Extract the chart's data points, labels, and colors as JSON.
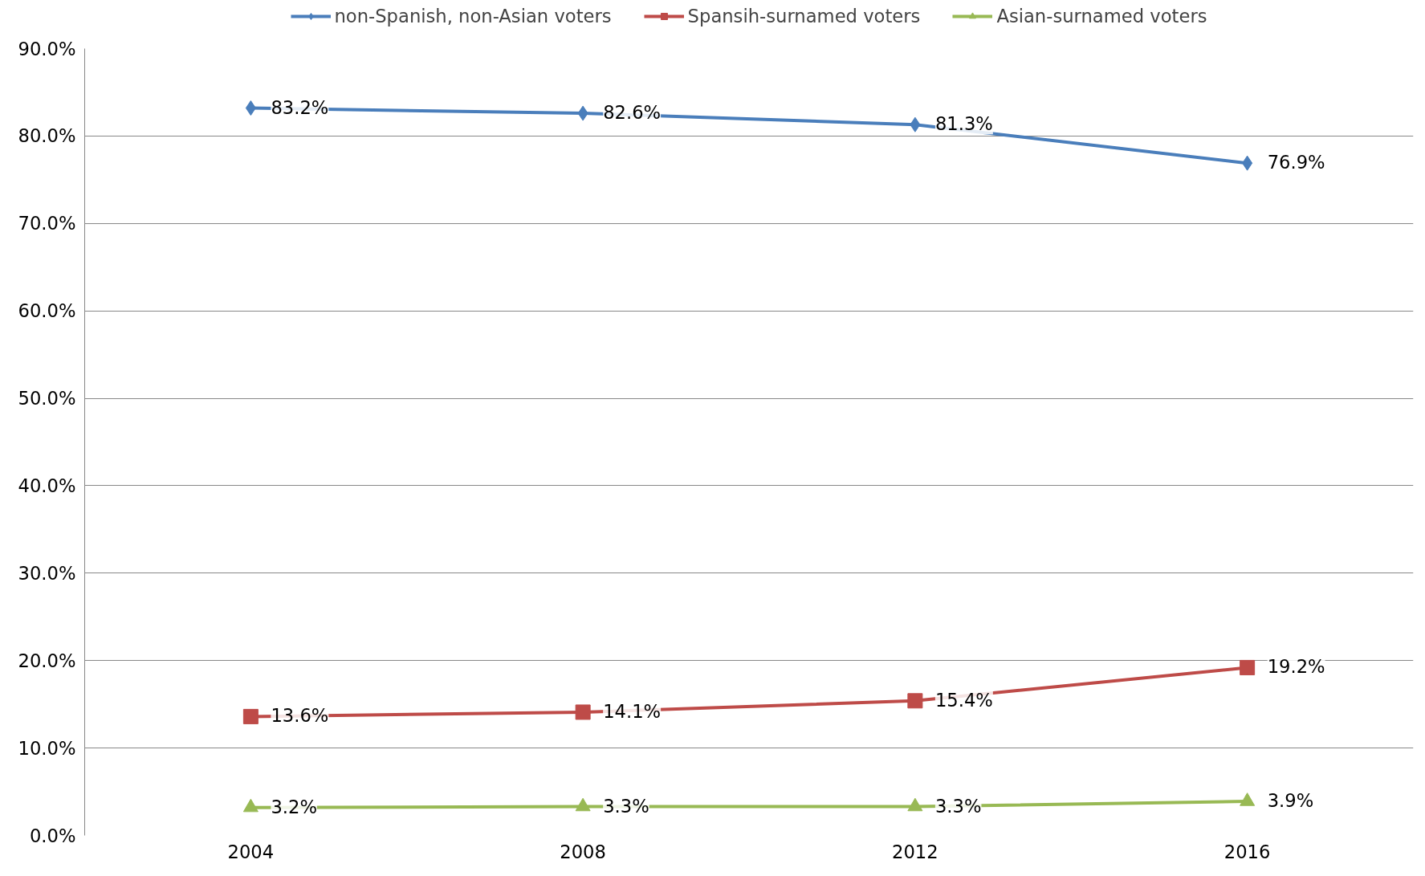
{
  "chart_data": {
    "type": "line",
    "categories": [
      "2004",
      "2008",
      "2012",
      "2016"
    ],
    "series": [
      {
        "name": "non-Spanish, non-Asian voters",
        "color": "#4a7ebb",
        "marker": "diamond",
        "values": [
          83.2,
          82.6,
          81.3,
          76.9
        ],
        "value_labels": [
          "83.2%",
          "82.6%",
          "81.3%",
          "76.9%"
        ]
      },
      {
        "name": "Spansih-surnamed voters",
        "color": "#be4b48",
        "marker": "square",
        "values": [
          13.6,
          14.1,
          15.4,
          19.2
        ],
        "value_labels": [
          "13.6%",
          "14.1%",
          "15.4%",
          "19.2%"
        ]
      },
      {
        "name": "Asian-surnamed voters",
        "color": "#98b954",
        "marker": "triangle",
        "values": [
          3.2,
          3.3,
          3.3,
          3.9
        ],
        "value_labels": [
          "3.2%",
          "3.3%",
          "3.3%",
          "3.9%"
        ]
      }
    ],
    "ylim": [
      0,
      90
    ],
    "yticks": [
      {
        "value": 0,
        "label": "0.0%"
      },
      {
        "value": 10,
        "label": "10.0%"
      },
      {
        "value": 20,
        "label": "20.0%"
      },
      {
        "value": 30,
        "label": "30.0%"
      },
      {
        "value": 40,
        "label": "40.0%"
      },
      {
        "value": 50,
        "label": "50.0%"
      },
      {
        "value": 60,
        "label": "60.0%"
      },
      {
        "value": 70,
        "label": "70.0%"
      },
      {
        "value": 80,
        "label": "80.0%"
      },
      {
        "value": 90,
        "label": "90.0%"
      }
    ],
    "grid": "y",
    "legend": "top",
    "line_style": "solid"
  }
}
